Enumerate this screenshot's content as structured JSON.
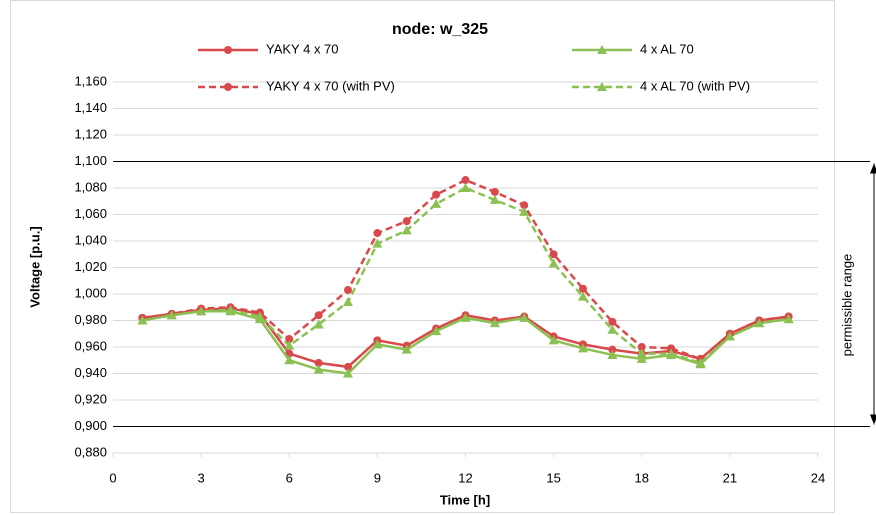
{
  "chart_data": {
    "type": "line",
    "title": "node: w_325",
    "x_label": "Time [h]",
    "y_label": "Voltage [p.u.]",
    "annotation": "permissible range",
    "x": [
      1,
      2,
      3,
      4,
      5,
      6,
      7,
      8,
      9,
      10,
      11,
      12,
      13,
      14,
      15,
      16,
      17,
      18,
      19,
      20,
      21,
      22,
      23
    ],
    "series": [
      {
        "name": "YAKY 4 x 70",
        "color": "#d9484a",
        "dashed": false,
        "marker": "circle",
        "values": [
          0.982,
          0.985,
          0.988,
          0.989,
          0.985,
          0.955,
          0.948,
          0.945,
          0.965,
          0.961,
          0.974,
          0.984,
          0.98,
          0.983,
          0.968,
          0.962,
          0.958,
          0.955,
          0.957,
          0.951,
          0.97,
          0.98,
          0.983
        ]
      },
      {
        "name": "4 x AL 70",
        "color": "#8bc052",
        "dashed": false,
        "marker": "triangle",
        "values": [
          0.98,
          0.984,
          0.987,
          0.987,
          0.981,
          0.95,
          0.943,
          0.94,
          0.962,
          0.958,
          0.972,
          0.982,
          0.978,
          0.982,
          0.965,
          0.959,
          0.954,
          0.951,
          0.954,
          0.947,
          0.968,
          0.978,
          0.981
        ]
      },
      {
        "name": "YAKY 4 x 70 (with PV)",
        "color": "#d9484a",
        "dashed": true,
        "marker": "circle",
        "values": [
          0.982,
          0.985,
          0.989,
          0.99,
          0.986,
          0.966,
          0.984,
          1.003,
          1.046,
          1.055,
          1.075,
          1.086,
          1.077,
          1.067,
          1.03,
          1.004,
          0.979,
          0.96,
          0.959,
          0.951,
          0.97,
          0.98,
          0.983
        ]
      },
      {
        "name": "4 x AL 70 (with PV)",
        "color": "#8bc052",
        "dashed": true,
        "marker": "triangle",
        "values": [
          0.98,
          0.984,
          0.987,
          0.988,
          0.983,
          0.961,
          0.977,
          0.994,
          1.038,
          1.048,
          1.068,
          1.08,
          1.071,
          1.062,
          1.023,
          0.998,
          0.973,
          0.955,
          0.955,
          0.948,
          0.968,
          0.978,
          0.981
        ]
      }
    ],
    "reference_lines": [
      1.1,
      0.9
    ],
    "xlim": [
      0,
      24
    ],
    "xticks": [
      0,
      3,
      6,
      9,
      12,
      15,
      18,
      21,
      24
    ],
    "ylim": [
      0.88,
      1.16
    ],
    "yticks": [
      {
        "value": 0.88,
        "label": "0,880"
      },
      {
        "value": 0.9,
        "label": "0,900"
      },
      {
        "value": 0.92,
        "label": "0,920"
      },
      {
        "value": 0.94,
        "label": "0,940"
      },
      {
        "value": 0.96,
        "label": "0,960"
      },
      {
        "value": 0.98,
        "label": "0,980"
      },
      {
        "value": 1.0,
        "label": "1,000"
      },
      {
        "value": 1.02,
        "label": "1,020"
      },
      {
        "value": 1.04,
        "label": "1,040"
      },
      {
        "value": 1.06,
        "label": "1,060"
      },
      {
        "value": 1.08,
        "label": "1,080"
      },
      {
        "value": 1.1,
        "label": "1,100"
      },
      {
        "value": 1.12,
        "label": "1,120"
      },
      {
        "value": 1.14,
        "label": "1,140"
      },
      {
        "value": 1.16,
        "label": "1,160"
      }
    ],
    "grid": true
  }
}
